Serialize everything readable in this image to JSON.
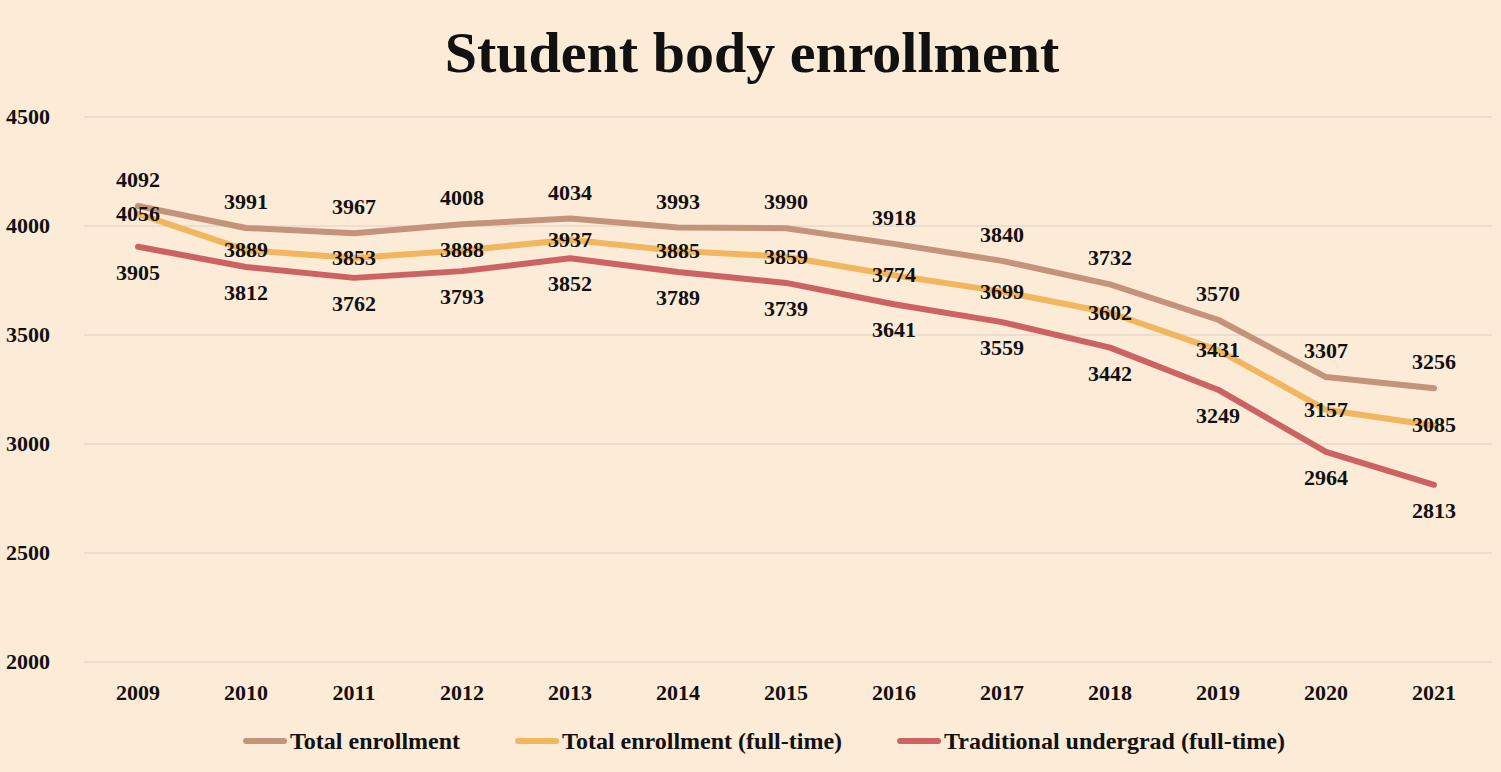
{
  "chart_data": {
    "type": "line",
    "title": "Student body enrollment",
    "categories": [
      "2009",
      "2010",
      "2011",
      "2012",
      "2013",
      "2014",
      "2015",
      "2016",
      "2017",
      "2018",
      "2019",
      "2020",
      "2021"
    ],
    "series": [
      {
        "name": "Total enrollment",
        "color": "#c4937a",
        "values": [
          4092,
          3991,
          3967,
          4008,
          4034,
          3993,
          3990,
          3918,
          3840,
          3732,
          3570,
          3307,
          3256
        ]
      },
      {
        "name": "Total enrollment (full-time)",
        "color": "#f2b65e",
        "values": [
          4056,
          3889,
          3853,
          3888,
          3937,
          3885,
          3859,
          3774,
          3699,
          3602,
          3431,
          3157,
          3085
        ]
      },
      {
        "name": "Traditional undergrad (full-time)",
        "color": "#cc6262",
        "values": [
          3905,
          3812,
          3762,
          3793,
          3852,
          3789,
          3739,
          3641,
          3559,
          3442,
          3249,
          2964,
          2813
        ]
      }
    ],
    "ylim": [
      2000,
      4500
    ],
    "yticks": [
      2000,
      2500,
      3000,
      3500,
      4000,
      4500
    ],
    "grid": true,
    "data_labels": true,
    "legend": "bottom"
  }
}
